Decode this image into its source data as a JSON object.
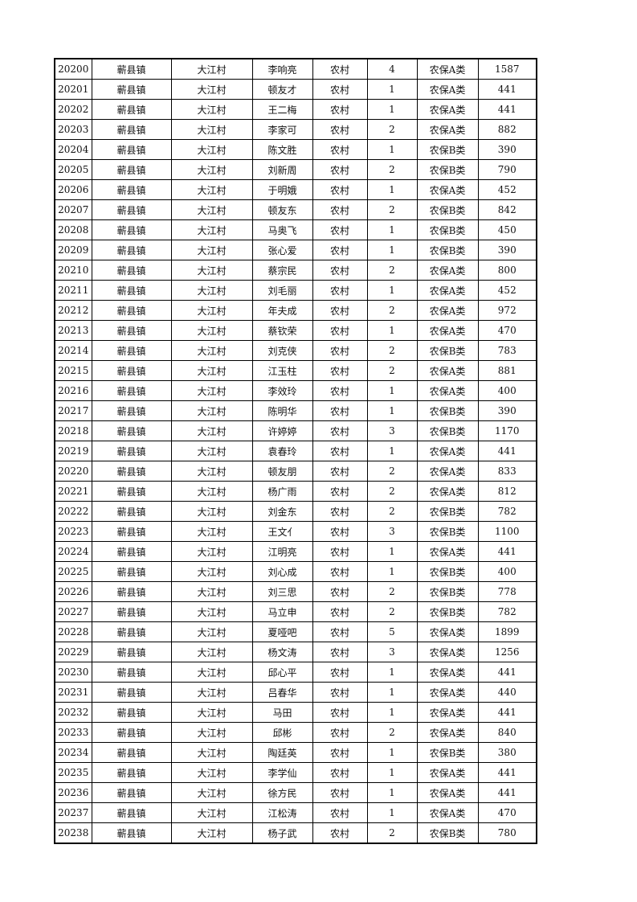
{
  "rows": [
    [
      "20200",
      "蕲县镇",
      "大江村",
      "李响亮",
      "农村",
      "4",
      "农保A类",
      "1587"
    ],
    [
      "20201",
      "蕲县镇",
      "大江村",
      "顿友才",
      "农村",
      "1",
      "农保A类",
      "441"
    ],
    [
      "20202",
      "蕲县镇",
      "大江村",
      "王二梅",
      "农村",
      "1",
      "农保A类",
      "441"
    ],
    [
      "20203",
      "蕲县镇",
      "大江村",
      "李家可",
      "农村",
      "2",
      "农保A类",
      "882"
    ],
    [
      "20204",
      "蕲县镇",
      "大江村",
      "陈文胜",
      "农村",
      "1",
      "农保B类",
      "390"
    ],
    [
      "20205",
      "蕲县镇",
      "大江村",
      "刘新周",
      "农村",
      "2",
      "农保B类",
      "790"
    ],
    [
      "20206",
      "蕲县镇",
      "大江村",
      "于明娥",
      "农村",
      "1",
      "农保A类",
      "452"
    ],
    [
      "20207",
      "蕲县镇",
      "大江村",
      "顿友东",
      "农村",
      "2",
      "农保B类",
      "842"
    ],
    [
      "20208",
      "蕲县镇",
      "大江村",
      "马奥飞",
      "农村",
      "1",
      "农保B类",
      "450"
    ],
    [
      "20209",
      "蕲县镇",
      "大江村",
      "张心爱",
      "农村",
      "1",
      "农保B类",
      "390"
    ],
    [
      "20210",
      "蕲县镇",
      "大江村",
      "蔡宗民",
      "农村",
      "2",
      "农保A类",
      "800"
    ],
    [
      "20211",
      "蕲县镇",
      "大江村",
      "刘毛丽",
      "农村",
      "1",
      "农保A类",
      "452"
    ],
    [
      "20212",
      "蕲县镇",
      "大江村",
      "年夫成",
      "农村",
      "2",
      "农保A类",
      "972"
    ],
    [
      "20213",
      "蕲县镇",
      "大江村",
      "蔡钦荣",
      "农村",
      "1",
      "农保A类",
      "470"
    ],
    [
      "20214",
      "蕲县镇",
      "大江村",
      "刘克侠",
      "农村",
      "2",
      "农保B类",
      "783"
    ],
    [
      "20215",
      "蕲县镇",
      "大江村",
      "江玉柱",
      "农村",
      "2",
      "农保A类",
      "881"
    ],
    [
      "20216",
      "蕲县镇",
      "大江村",
      "李效玲",
      "农村",
      "1",
      "农保A类",
      "400"
    ],
    [
      "20217",
      "蕲县镇",
      "大江村",
      "陈明华",
      "农村",
      "1",
      "农保B类",
      "390"
    ],
    [
      "20218",
      "蕲县镇",
      "大江村",
      "许婷婷",
      "农村",
      "3",
      "农保B类",
      "1170"
    ],
    [
      "20219",
      "蕲县镇",
      "大江村",
      "袁春玲",
      "农村",
      "1",
      "农保A类",
      "441"
    ],
    [
      "20220",
      "蕲县镇",
      "大江村",
      "顿友朋",
      "农村",
      "2",
      "农保A类",
      "833"
    ],
    [
      "20221",
      "蕲县镇",
      "大江村",
      "杨广雨",
      "农村",
      "2",
      "农保A类",
      "812"
    ],
    [
      "20222",
      "蕲县镇",
      "大江村",
      "刘金东",
      "农村",
      "2",
      "农保B类",
      "782"
    ],
    [
      "20223",
      "蕲县镇",
      "大江村",
      "王文亻",
      "农村",
      "3",
      "农保B类",
      "1100"
    ],
    [
      "20224",
      "蕲县镇",
      "大江村",
      "江明亮",
      "农村",
      "1",
      "农保A类",
      "441"
    ],
    [
      "20225",
      "蕲县镇",
      "大江村",
      "刘心成",
      "农村",
      "1",
      "农保B类",
      "400"
    ],
    [
      "20226",
      "蕲县镇",
      "大江村",
      "刘三思",
      "农村",
      "2",
      "农保B类",
      "778"
    ],
    [
      "20227",
      "蕲县镇",
      "大江村",
      "马立申",
      "农村",
      "2",
      "农保B类",
      "782"
    ],
    [
      "20228",
      "蕲县镇",
      "大江村",
      "夏哑吧",
      "农村",
      "5",
      "农保A类",
      "1899"
    ],
    [
      "20229",
      "蕲县镇",
      "大江村",
      "杨文涛",
      "农村",
      "3",
      "农保A类",
      "1256"
    ],
    [
      "20230",
      "蕲县镇",
      "大江村",
      "邱心平",
      "农村",
      "1",
      "农保A类",
      "441"
    ],
    [
      "20231",
      "蕲县镇",
      "大江村",
      "吕春华",
      "农村",
      "1",
      "农保A类",
      "440"
    ],
    [
      "20232",
      "蕲县镇",
      "大江村",
      "马田",
      "农村",
      "1",
      "农保A类",
      "441"
    ],
    [
      "20233",
      "蕲县镇",
      "大江村",
      "邱彬",
      "农村",
      "2",
      "农保A类",
      "840"
    ],
    [
      "20234",
      "蕲县镇",
      "大江村",
      "陶廷英",
      "农村",
      "1",
      "农保B类",
      "380"
    ],
    [
      "20235",
      "蕲县镇",
      "大江村",
      "李学仙",
      "农村",
      "1",
      "农保A类",
      "441"
    ],
    [
      "20236",
      "蕲县镇",
      "大江村",
      "徐方民",
      "农村",
      "1",
      "农保A类",
      "441"
    ],
    [
      "20237",
      "蕲县镇",
      "大江村",
      "江松涛",
      "农村",
      "1",
      "农保A类",
      "470"
    ],
    [
      "20238",
      "蕲县镇",
      "大江村",
      "杨子武",
      "农村",
      "2",
      "农保B类",
      "780"
    ]
  ]
}
